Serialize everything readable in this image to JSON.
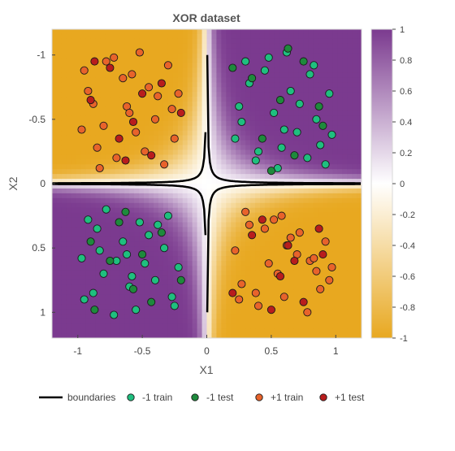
{
  "chart_data": {
    "type": "scatter",
    "title": "XOR dataset",
    "xlabel": "X1",
    "ylabel": "X2",
    "xlim": [
      -1.2,
      1.2
    ],
    "ylim": [
      -1.2,
      1.2
    ],
    "y_axis_reversed": true,
    "xticks": [
      {
        "value": -1,
        "label": "-1"
      },
      {
        "value": -0.5,
        "label": "-0.5"
      },
      {
        "value": 0,
        "label": "0"
      },
      {
        "value": 0.5,
        "label": "0.5"
      },
      {
        "value": 1,
        "label": "1"
      }
    ],
    "yticks": [
      {
        "value": -1,
        "label": "-1"
      },
      {
        "value": -0.5,
        "label": "-0.5"
      },
      {
        "value": 0,
        "label": "0"
      },
      {
        "value": 0.5,
        "label": "0.5"
      },
      {
        "value": 1,
        "label": "1"
      }
    ],
    "colorbar": {
      "range": [
        -1,
        1
      ],
      "ticks": [
        {
          "value": 1,
          "label": "1"
        },
        {
          "value": 0.8,
          "label": "0.8"
        },
        {
          "value": 0.6,
          "label": "0.6"
        },
        {
          "value": 0.4,
          "label": "0.4"
        },
        {
          "value": 0.2,
          "label": "0.2"
        },
        {
          "value": 0,
          "label": "0"
        },
        {
          "value": -0.2,
          "label": "-0.2"
        },
        {
          "value": -0.4,
          "label": "-0.4"
        },
        {
          "value": -0.6,
          "label": "-0.6"
        },
        {
          "value": -0.8,
          "label": "-0.8"
        },
        {
          "value": -1,
          "label": "-1"
        }
      ],
      "color_low": "#e8a820",
      "color_mid": "#ffffff",
      "color_high": "#7b3a8f"
    },
    "background": "decision function shading: positive where X1*X2 < 0 (purple), negative where X1*X2 > 0 (gold)",
    "series": [
      {
        "name": "boundaries",
        "style": "line",
        "color": "#000000"
      },
      {
        "name": "-1 train",
        "style": "marker",
        "color": "#1fbf7f",
        "x": [
          0.3,
          0.45,
          0.62,
          0.8,
          0.95,
          0.25,
          0.52,
          0.7,
          0.88,
          0.4,
          0.65,
          0.85,
          0.22,
          0.55,
          0.78,
          0.33,
          0.6,
          0.92,
          0.48,
          0.72,
          0.27,
          0.83,
          0.58,
          0.38,
          0.97,
          -0.3,
          -0.45,
          -0.62,
          -0.8,
          -0.95,
          -0.25,
          -0.52,
          -0.7,
          -0.88,
          -0.4,
          -0.65,
          -0.85,
          -0.22,
          -0.55,
          -0.78,
          -0.33,
          -0.6,
          -0.92,
          -0.48,
          -0.72,
          -0.27,
          -0.83,
          -0.58,
          -0.38,
          -0.97
        ],
        "y": [
          -0.95,
          -0.88,
          -1.02,
          -0.85,
          -0.7,
          -0.6,
          -0.55,
          -0.4,
          -0.3,
          -0.25,
          -0.72,
          -0.5,
          -0.35,
          -0.12,
          -0.2,
          -0.78,
          -0.42,
          -0.15,
          -0.98,
          -0.62,
          -0.48,
          -0.92,
          -0.28,
          -0.18,
          -0.38,
          0.25,
          0.4,
          0.55,
          0.7,
          0.9,
          0.95,
          0.3,
          0.6,
          0.85,
          0.75,
          0.45,
          0.35,
          0.65,
          0.98,
          0.2,
          0.5,
          0.8,
          0.28,
          0.62,
          1.02,
          0.88,
          0.52,
          0.72,
          0.32,
          0.58
        ]
      },
      {
        "name": "-1 test",
        "style": "marker",
        "color": "#1e8a3c",
        "x": [
          0.35,
          0.57,
          0.75,
          0.9,
          0.43,
          0.68,
          0.2,
          0.87,
          0.5,
          0.63,
          -0.35,
          -0.57,
          -0.75,
          -0.9,
          -0.43,
          -0.68,
          -0.2,
          -0.87,
          -0.5,
          -0.63
        ],
        "y": [
          -0.82,
          -0.65,
          -0.95,
          -0.45,
          -0.35,
          -0.22,
          -0.9,
          -0.6,
          -0.1,
          -1.05,
          0.38,
          0.82,
          0.6,
          0.45,
          0.92,
          0.3,
          0.75,
          0.98,
          0.55,
          0.22
        ]
      },
      {
        "name": "+1 train",
        "style": "marker",
        "color": "#e8632b",
        "x": [
          -0.3,
          -0.45,
          -0.62,
          -0.8,
          -0.95,
          -0.25,
          -0.52,
          -0.7,
          -0.88,
          -0.4,
          -0.65,
          -0.85,
          -0.22,
          -0.55,
          -0.78,
          -0.33,
          -0.6,
          -0.92,
          -0.48,
          -0.72,
          -0.27,
          -0.83,
          -0.58,
          -0.38,
          -0.97,
          0.3,
          0.45,
          0.62,
          0.8,
          0.95,
          0.25,
          0.52,
          0.7,
          0.88,
          0.4,
          0.65,
          0.85,
          0.22,
          0.55,
          0.78,
          0.33,
          0.6,
          0.92,
          0.48,
          0.72,
          0.27,
          0.83,
          0.58,
          0.38,
          0.97
        ],
        "y": [
          -0.92,
          -0.75,
          -0.6,
          -0.45,
          -0.88,
          -0.35,
          -1.02,
          -0.2,
          -0.62,
          -0.5,
          -0.82,
          -0.28,
          -0.7,
          -0.4,
          -0.95,
          -0.15,
          -0.55,
          -0.72,
          -0.25,
          -0.98,
          -0.58,
          -0.12,
          -0.85,
          -0.68,
          -0.42,
          0.22,
          0.35,
          0.48,
          0.6,
          0.75,
          0.9,
          0.28,
          0.55,
          0.82,
          0.95,
          0.42,
          0.68,
          0.52,
          0.7,
          1.0,
          0.32,
          0.88,
          0.45,
          0.62,
          0.38,
          0.78,
          0.58,
          0.25,
          0.85,
          0.65
        ]
      },
      {
        "name": "+1 test",
        "style": "marker",
        "color": "#b81d1d",
        "x": [
          -0.35,
          -0.57,
          -0.75,
          -0.9,
          -0.43,
          -0.68,
          -0.2,
          -0.87,
          -0.5,
          -0.63,
          0.35,
          0.57,
          0.75,
          0.9,
          0.43,
          0.68,
          0.2,
          0.87,
          0.5,
          0.63
        ],
        "y": [
          -0.78,
          -0.48,
          -0.9,
          -0.65,
          -0.22,
          -0.35,
          -0.55,
          -0.95,
          -0.7,
          -0.18,
          0.4,
          0.72,
          0.92,
          0.55,
          0.28,
          0.6,
          0.85,
          0.35,
          0.98,
          0.48
        ]
      }
    ],
    "legend": {
      "placement": "bottom",
      "items": [
        {
          "label": "boundaries",
          "kind": "line",
          "color": "#000000"
        },
        {
          "label": "-1 train",
          "kind": "marker",
          "color": "#1fbf7f"
        },
        {
          "label": "-1 test",
          "kind": "marker",
          "color": "#1e8a3c"
        },
        {
          "label": "+1 train",
          "kind": "marker",
          "color": "#e8632b"
        },
        {
          "label": "+1 test",
          "kind": "marker",
          "color": "#b81d1d"
        }
      ]
    }
  }
}
